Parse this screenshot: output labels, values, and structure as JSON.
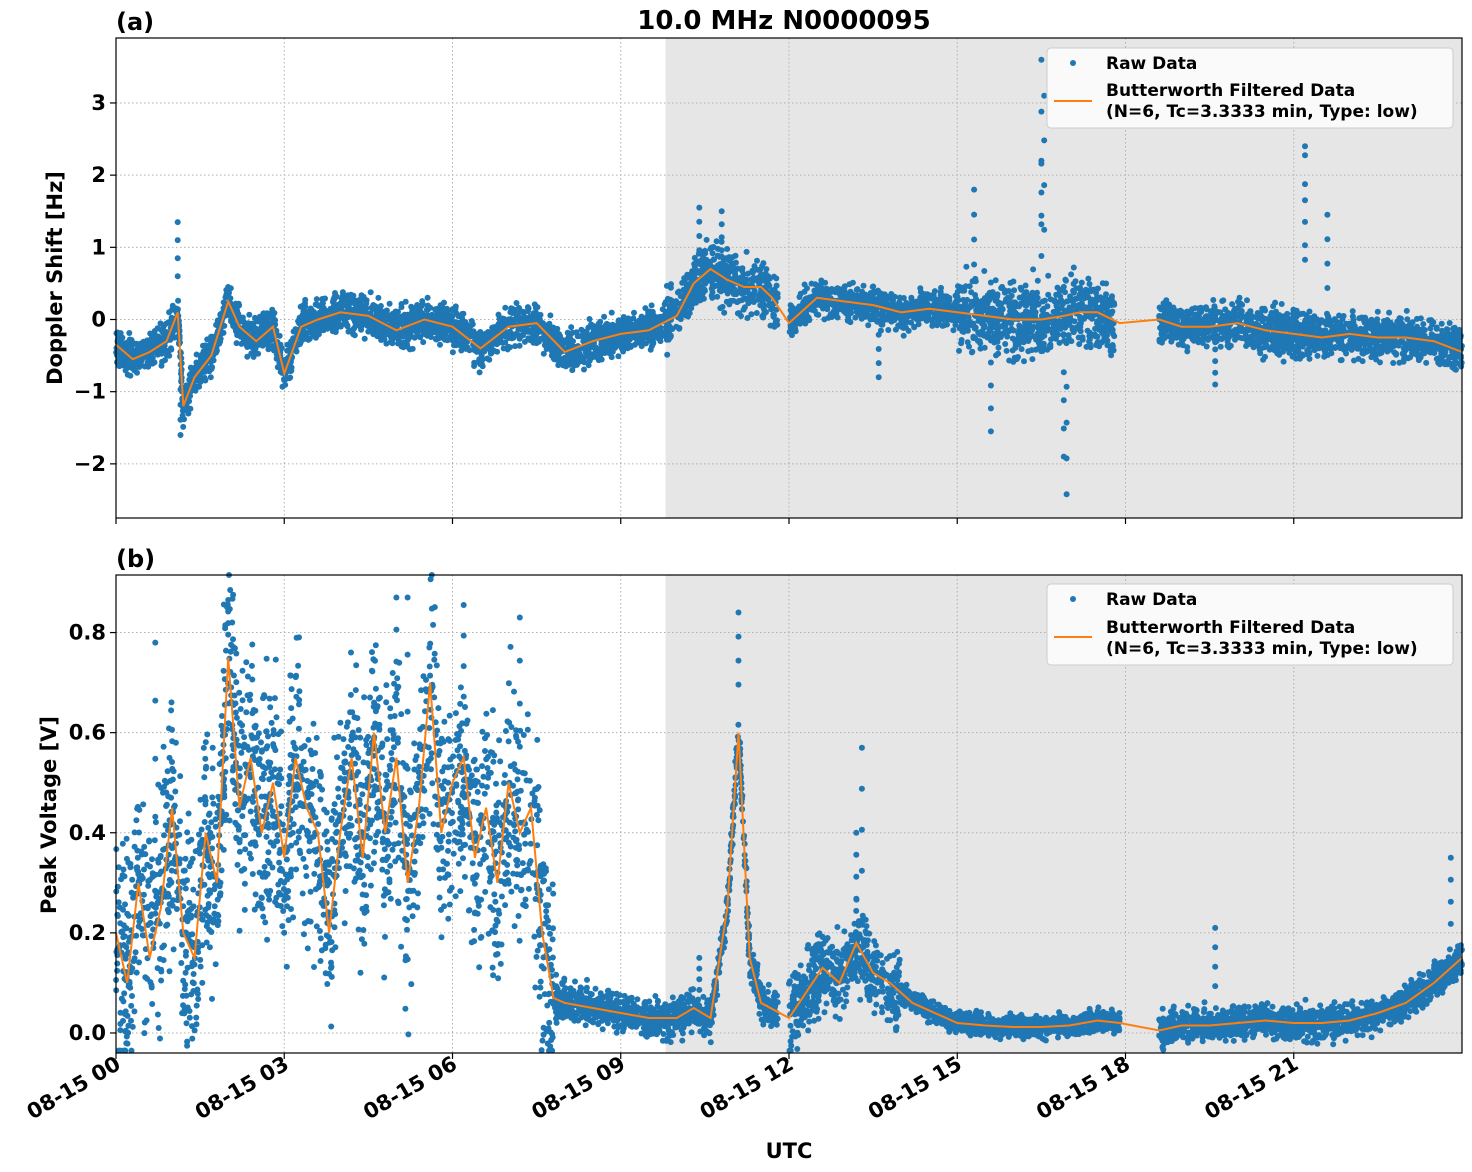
{
  "figure": {
    "suptitle": "10.0 MHz N0000095",
    "xlabel": "UTC",
    "x_ticks": [
      "08-15 00",
      "08-15 03",
      "08-15 06",
      "08-15 09",
      "08-15 12",
      "08-15 15",
      "08-15 18",
      "08-15 21"
    ],
    "x_tick_hours": [
      0,
      3,
      6,
      9,
      12,
      15,
      18,
      21
    ],
    "x_range_hours": [
      0,
      24
    ],
    "shaded_region_hours": [
      9.8,
      24
    ],
    "shade_color": "#e6e6e6",
    "raw_color": "#1f77b4",
    "filtered_color": "#ff7f0e",
    "grid": true,
    "legend_placement": "upper right"
  },
  "legend": {
    "raw_label": "Raw Data",
    "filtered_label_line1": "Butterworth Filtered Data",
    "filtered_label_line2": "(N=6, Tc=3.3333 min, Type: low)"
  },
  "chart_data": [
    {
      "type": "scatter",
      "panel_label": "(a)",
      "ylabel": "Doppler Shift [Hz]",
      "ylim": [
        -2.75,
        3.9
      ],
      "y_ticks": [
        3,
        2,
        1,
        0,
        -1,
        -2
      ],
      "y_tick_labels": [
        "3",
        "2",
        "1",
        "0",
        "−1",
        "−2"
      ],
      "series": [
        {
          "name": "Butterworth Filtered Data",
          "style": "line",
          "x": [
            0,
            0.3,
            0.6,
            0.9,
            1.1,
            1.2,
            1.4,
            1.7,
            2.0,
            2.2,
            2.5,
            2.8,
            3.0,
            3.3,
            3.6,
            4.0,
            4.5,
            5.0,
            5.5,
            6.0,
            6.5,
            7.0,
            7.5,
            8.0,
            8.5,
            9.0,
            9.5,
            10.0,
            10.3,
            10.6,
            10.9,
            11.2,
            11.5,
            11.7,
            12.0,
            12.5,
            13.0,
            13.5,
            14.0,
            14.5,
            15.0,
            15.5,
            16.0,
            16.5,
            16.9,
            17.2,
            17.5,
            17.9,
            18.6,
            19.0,
            19.5,
            20.0,
            20.5,
            21.0,
            21.5,
            22.0,
            22.5,
            23.0,
            23.5,
            24.0
          ],
          "y": [
            -0.35,
            -0.55,
            -0.45,
            -0.3,
            0.1,
            -1.2,
            -0.8,
            -0.5,
            0.25,
            -0.1,
            -0.3,
            -0.1,
            -0.75,
            -0.1,
            0.0,
            0.1,
            0.05,
            -0.15,
            0.0,
            -0.1,
            -0.4,
            -0.1,
            -0.05,
            -0.45,
            -0.3,
            -0.2,
            -0.15,
            0.05,
            0.5,
            0.7,
            0.55,
            0.45,
            0.45,
            0.3,
            -0.05,
            0.3,
            0.25,
            0.2,
            0.1,
            0.15,
            0.1,
            0.05,
            0.0,
            0.0,
            0.05,
            0.1,
            0.1,
            -0.05,
            0.0,
            -0.1,
            -0.1,
            -0.05,
            -0.15,
            -0.2,
            -0.25,
            -0.2,
            -0.25,
            -0.25,
            -0.3,
            -0.45
          ]
        },
        {
          "name": "Raw Data",
          "style": "points",
          "spread_note": "band around filtered line",
          "spread": [
            {
              "from": 0,
              "to": 9.8,
              "half_width": 0.25
            },
            {
              "from": 9.8,
              "to": 11.8,
              "half_width": 0.35
            },
            {
              "from": 11.8,
              "to": 15.0,
              "half_width": 0.22
            },
            {
              "from": 15.0,
              "to": 17.8,
              "half_width": 0.45
            },
            {
              "from": 18.6,
              "to": 24.0,
              "half_width": 0.28
            }
          ],
          "gaps_hours": [
            [
              11.8,
              12.0
            ],
            [
              17.9,
              18.6
            ]
          ],
          "outliers": [
            {
              "x": 1.1,
              "y": 1.35
            },
            {
              "x": 1.15,
              "y": -1.6
            },
            {
              "x": 2.0,
              "y": 0.45
            },
            {
              "x": 10.4,
              "y": 1.55
            },
            {
              "x": 10.8,
              "y": 1.5
            },
            {
              "x": 15.3,
              "y": 1.8
            },
            {
              "x": 15.6,
              "y": -1.55
            },
            {
              "x": 16.5,
              "y": 2.2
            },
            {
              "x": 16.55,
              "y": 3.1
            },
            {
              "x": 16.5,
              "y": 3.6
            },
            {
              "x": 16.9,
              "y": -1.9
            },
            {
              "x": 16.95,
              "y": -2.42
            },
            {
              "x": 21.2,
              "y": 2.4
            },
            {
              "x": 21.2,
              "y": 2.9
            },
            {
              "x": 21.6,
              "y": 1.45
            },
            {
              "x": 13.6,
              "y": -0.8
            },
            {
              "x": 19.6,
              "y": -0.9
            }
          ]
        }
      ]
    },
    {
      "type": "scatter",
      "panel_label": "(b)",
      "ylabel": "Peak Voltage [V]",
      "ylim": [
        -0.04,
        0.915
      ],
      "y_ticks": [
        0.8,
        0.6,
        0.4,
        0.2,
        0.0
      ],
      "y_tick_labels": [
        "0.8",
        "0.6",
        "0.4",
        "0.2",
        "0.0"
      ],
      "series": [
        {
          "name": "Butterworth Filtered Data",
          "style": "line",
          "x": [
            0,
            0.2,
            0.4,
            0.6,
            0.8,
            1.0,
            1.2,
            1.4,
            1.6,
            1.8,
            2.0,
            2.2,
            2.4,
            2.6,
            2.8,
            3.0,
            3.2,
            3.4,
            3.6,
            3.8,
            4.0,
            4.2,
            4.4,
            4.6,
            4.8,
            5.0,
            5.2,
            5.4,
            5.6,
            5.8,
            6.0,
            6.2,
            6.4,
            6.6,
            6.8,
            7.0,
            7.2,
            7.4,
            7.6,
            7.8,
            8.0,
            8.5,
            9.0,
            9.5,
            10.0,
            10.3,
            10.6,
            10.9,
            11.1,
            11.3,
            11.5,
            12.0,
            12.3,
            12.6,
            12.9,
            13.2,
            13.5,
            13.8,
            14.2,
            14.6,
            15.0,
            15.5,
            16.0,
            16.5,
            17.0,
            17.5,
            17.9,
            18.6,
            19.0,
            19.5,
            20.0,
            20.5,
            21.0,
            21.5,
            22.0,
            22.5,
            23.0,
            23.5,
            24.0
          ],
          "y": [
            0.2,
            0.1,
            0.3,
            0.15,
            0.25,
            0.45,
            0.2,
            0.15,
            0.4,
            0.3,
            0.75,
            0.45,
            0.55,
            0.4,
            0.5,
            0.35,
            0.55,
            0.45,
            0.4,
            0.2,
            0.4,
            0.55,
            0.35,
            0.6,
            0.4,
            0.55,
            0.3,
            0.45,
            0.7,
            0.4,
            0.5,
            0.55,
            0.35,
            0.45,
            0.3,
            0.5,
            0.4,
            0.45,
            0.2,
            0.07,
            0.06,
            0.05,
            0.04,
            0.03,
            0.03,
            0.05,
            0.03,
            0.25,
            0.6,
            0.15,
            0.06,
            0.03,
            0.08,
            0.13,
            0.1,
            0.18,
            0.12,
            0.1,
            0.06,
            0.04,
            0.02,
            0.015,
            0.012,
            0.012,
            0.015,
            0.025,
            0.02,
            0.005,
            0.015,
            0.015,
            0.02,
            0.025,
            0.02,
            0.02,
            0.025,
            0.04,
            0.06,
            0.1,
            0.15
          ]
        },
        {
          "name": "Raw Data",
          "style": "points",
          "spread_note": "band around filtered line",
          "spread": [
            {
              "from": 0,
              "to": 7.8,
              "half_width": 0.22
            },
            {
              "from": 7.8,
              "to": 11.8,
              "half_width": 0.035
            },
            {
              "from": 11.8,
              "to": 14.0,
              "half_width": 0.07
            },
            {
              "from": 14.0,
              "to": 17.9,
              "half_width": 0.02
            },
            {
              "from": 18.6,
              "to": 24.0,
              "half_width": 0.03
            }
          ],
          "gaps_hours": [
            [
              11.8,
              12.0
            ],
            [
              17.9,
              18.6
            ]
          ],
          "outliers": [
            {
              "x": 2.0,
              "y": 0.865
            },
            {
              "x": 5.0,
              "y": 0.87
            },
            {
              "x": 5.2,
              "y": 0.87
            },
            {
              "x": 6.2,
              "y": 0.855
            },
            {
              "x": 7.2,
              "y": 0.83
            },
            {
              "x": 0.7,
              "y": 0.78
            },
            {
              "x": 11.1,
              "y": 0.84
            },
            {
              "x": 13.3,
              "y": 0.57
            },
            {
              "x": 13.2,
              "y": 0.4
            },
            {
              "x": 19.6,
              "y": 0.21
            },
            {
              "x": 10.4,
              "y": 0.15
            },
            {
              "x": 23.8,
              "y": 0.35
            }
          ]
        }
      ]
    }
  ]
}
